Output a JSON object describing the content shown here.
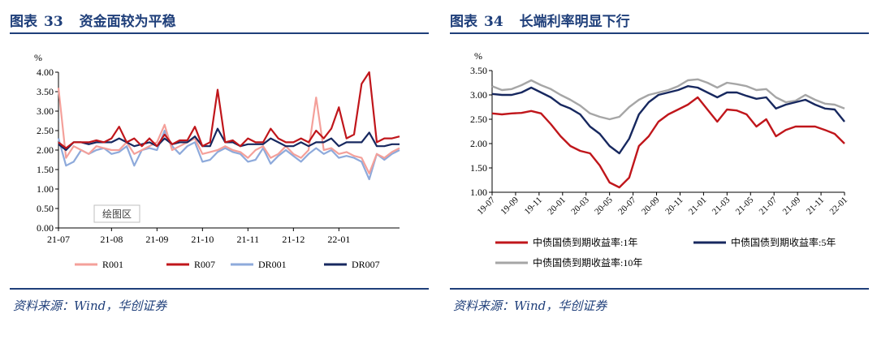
{
  "left": {
    "title_prefix": "图表",
    "title_num": "33",
    "title_text": "资金面较为平稳",
    "source": "资料来源：Wind，华创证券",
    "plot_area_label": "绘图区"
  },
  "right": {
    "title_prefix": "图表",
    "title_num": "34",
    "title_text": "长端利率明显下行",
    "source": "资料来源：Wind，华创证券"
  },
  "chart_data": [
    {
      "type": "line",
      "title": "资金面较为平稳",
      "unit_label": "%",
      "ylim": [
        0,
        4
      ],
      "yticks": [
        "0.00",
        "0.50",
        "1.00",
        "1.50",
        "2.00",
        "2.50",
        "3.00",
        "3.50",
        "4.00"
      ],
      "xticks": [
        "21-07",
        "21-08",
        "21-09",
        "21-10",
        "21-11",
        "21-12",
        "22-01"
      ],
      "x": [
        "21-07-01",
        "21-07-05",
        "21-07-10",
        "21-07-15",
        "21-07-20",
        "21-07-25",
        "21-07-31",
        "21-08-03",
        "21-08-08",
        "21-08-13",
        "21-08-18",
        "21-08-24",
        "21-08-31",
        "21-09-05",
        "21-09-10",
        "21-09-15",
        "21-09-20",
        "21-09-25",
        "21-09-30",
        "21-10-05",
        "21-10-10",
        "21-10-15",
        "21-10-20",
        "21-10-25",
        "21-10-31",
        "21-11-05",
        "21-11-10",
        "21-11-15",
        "21-11-20",
        "21-11-25",
        "21-11-30",
        "21-12-03",
        "21-12-08",
        "21-12-13",
        "21-12-18",
        "21-12-23",
        "21-12-31",
        "22-01-05",
        "22-01-10",
        "22-01-15",
        "22-01-20",
        "22-01-25",
        "22-02-05",
        "22-02-10",
        "22-02-15",
        "22-02-22"
      ],
      "series": [
        {
          "name": "R001",
          "color": "#f4a09a",
          "values": [
            3.6,
            1.8,
            2.1,
            2.0,
            1.9,
            2.1,
            2.05,
            2.0,
            2.0,
            2.2,
            1.9,
            2.0,
            2.1,
            2.2,
            2.65,
            2.0,
            2.1,
            2.2,
            2.3,
            1.9,
            1.95,
            2.0,
            2.1,
            2.0,
            1.95,
            1.8,
            2.0,
            2.1,
            1.8,
            1.9,
            2.1,
            1.9,
            1.8,
            2.0,
            3.35,
            2.0,
            2.05,
            1.9,
            1.95,
            1.85,
            1.8,
            1.4,
            1.9,
            1.8,
            1.95,
            2.05
          ]
        },
        {
          "name": "R007",
          "color": "#c0161b",
          "values": [
            2.2,
            2.05,
            2.2,
            2.2,
            2.2,
            2.25,
            2.2,
            2.3,
            2.6,
            2.2,
            2.3,
            2.1,
            2.3,
            2.1,
            2.4,
            2.15,
            2.25,
            2.25,
            2.6,
            2.1,
            2.2,
            3.55,
            2.2,
            2.25,
            2.1,
            2.3,
            2.2,
            2.2,
            2.55,
            2.3,
            2.2,
            2.2,
            2.3,
            2.2,
            2.5,
            2.3,
            2.55,
            3.1,
            2.3,
            2.4,
            3.7,
            4.0,
            2.2,
            2.3,
            2.3,
            2.35
          ]
        },
        {
          "name": "DR001",
          "color": "#8eaadb",
          "values": [
            2.3,
            1.6,
            1.7,
            2.0,
            1.9,
            2.0,
            2.05,
            1.9,
            1.95,
            2.1,
            1.6,
            2.0,
            2.05,
            2.0,
            2.5,
            2.1,
            1.9,
            2.1,
            2.2,
            1.7,
            1.75,
            1.95,
            2.05,
            1.95,
            1.9,
            1.7,
            1.75,
            2.05,
            1.65,
            1.85,
            2.0,
            1.85,
            1.7,
            1.9,
            2.05,
            1.9,
            2.0,
            1.8,
            1.85,
            1.8,
            1.7,
            1.25,
            1.9,
            1.75,
            1.9,
            2.0
          ]
        },
        {
          "name": "DR007",
          "color": "#17285f",
          "values": [
            2.15,
            2.0,
            2.2,
            2.2,
            2.15,
            2.2,
            2.2,
            2.2,
            2.3,
            2.2,
            2.1,
            2.15,
            2.2,
            2.1,
            2.3,
            2.15,
            2.2,
            2.2,
            2.35,
            2.1,
            2.1,
            2.55,
            2.2,
            2.2,
            2.1,
            2.15,
            2.15,
            2.15,
            2.3,
            2.2,
            2.1,
            2.1,
            2.2,
            2.1,
            2.2,
            2.2,
            2.3,
            2.1,
            2.2,
            2.2,
            2.2,
            2.45,
            2.1,
            2.1,
            2.15,
            2.15
          ]
        }
      ]
    },
    {
      "type": "line",
      "title": "长端利率明显下行",
      "unit_label": "%",
      "ylim": [
        1.0,
        3.5
      ],
      "yticks": [
        "1.00",
        "1.50",
        "2.00",
        "2.50",
        "3.00",
        "3.50"
      ],
      "xticks": [
        "19-07",
        "19-09",
        "19-11",
        "20-01",
        "20-03",
        "20-05",
        "20-07",
        "20-09",
        "20-11",
        "21-01",
        "21-03",
        "21-05",
        "21-07",
        "21-09",
        "21-11",
        "22-01"
      ],
      "x": [
        "19-07",
        "19-08",
        "19-09",
        "19-10",
        "19-11",
        "19-12",
        "20-01",
        "20-01b",
        "20-02",
        "20-03",
        "20-03b",
        "20-04",
        "20-04b",
        "20-05",
        "20-05b",
        "20-06",
        "20-07",
        "20-08",
        "20-09",
        "20-10",
        "20-11",
        "20-11b",
        "20-12",
        "21-01",
        "21-02",
        "21-03",
        "21-04",
        "21-05",
        "21-06",
        "21-07",
        "21-08",
        "21-09",
        "21-10",
        "21-11",
        "21-12",
        "22-01",
        "22-02"
      ],
      "series": [
        {
          "name": "中债国债到期收益率:1年",
          "color": "#c0161b",
          "values": [
            2.62,
            2.6,
            2.62,
            2.63,
            2.67,
            2.62,
            2.4,
            2.15,
            1.95,
            1.85,
            1.8,
            1.55,
            1.2,
            1.1,
            1.3,
            1.95,
            2.15,
            2.45,
            2.6,
            2.7,
            2.8,
            2.95,
            2.7,
            2.45,
            2.7,
            2.68,
            2.6,
            2.35,
            2.5,
            2.15,
            2.28,
            2.35,
            2.35,
            2.35,
            2.28,
            2.2,
            2.0
          ]
        },
        {
          "name": "中债国债到期收益率:5年",
          "color": "#17285f",
          "values": [
            3.02,
            3.0,
            3.0,
            3.05,
            3.15,
            3.05,
            2.95,
            2.8,
            2.72,
            2.6,
            2.35,
            2.2,
            1.95,
            1.8,
            2.1,
            2.6,
            2.85,
            3.0,
            3.05,
            3.1,
            3.18,
            3.15,
            3.05,
            2.95,
            3.05,
            3.05,
            2.98,
            2.92,
            2.95,
            2.72,
            2.8,
            2.85,
            2.9,
            2.8,
            2.72,
            2.7,
            2.45
          ]
        },
        {
          "name": "中债国债到期收益率:10年",
          "color": "#a6a6a6",
          "values": [
            3.18,
            3.1,
            3.12,
            3.2,
            3.3,
            3.2,
            3.12,
            3.0,
            2.9,
            2.78,
            2.62,
            2.55,
            2.5,
            2.55,
            2.75,
            2.9,
            3.0,
            3.05,
            3.1,
            3.18,
            3.3,
            3.32,
            3.25,
            3.15,
            3.25,
            3.22,
            3.18,
            3.1,
            3.12,
            2.95,
            2.85,
            2.88,
            3.0,
            2.9,
            2.82,
            2.8,
            2.72
          ]
        }
      ]
    }
  ]
}
